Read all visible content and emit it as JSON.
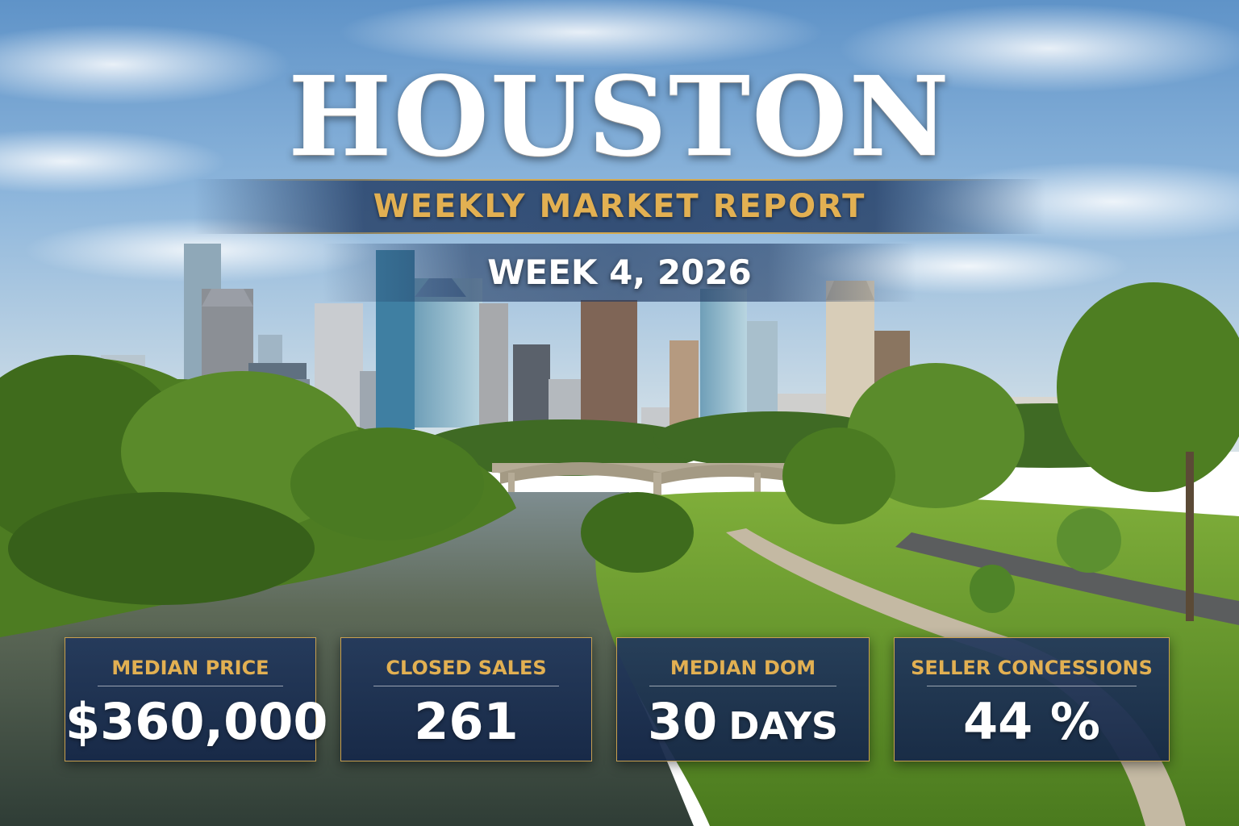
{
  "header": {
    "city": "HOUSTON",
    "report_title": "WEEKLY MARKET REPORT",
    "period": "WEEK 4, 2026"
  },
  "stats": [
    {
      "label": "MEDIAN PRICE",
      "value": "$360,000",
      "unit": ""
    },
    {
      "label": "CLOSED SALES",
      "value": "261",
      "unit": ""
    },
    {
      "label": "MEDIAN DOM",
      "value": "30",
      "unit": "DAYS"
    },
    {
      "label": "SELLER CONCESSIONS",
      "value": "44 %",
      "unit": ""
    }
  ],
  "colors": {
    "accent_gold": "#e2b052",
    "panel_navy": "#22385c",
    "sky": "#8fb7dc",
    "foliage": "#4f7d24",
    "river": "#566048"
  }
}
